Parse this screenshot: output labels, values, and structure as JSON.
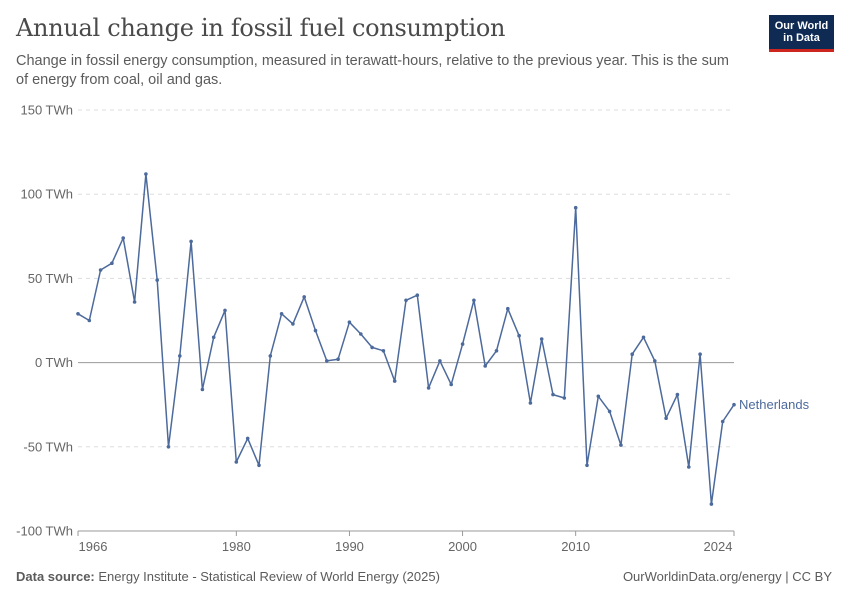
{
  "title": "Annual change in fossil fuel consumption",
  "subtitle": "Change in fossil energy consumption, measured in terawatt-hours, relative to the previous year. This is the sum of energy from coal, oil and gas.",
  "logo": {
    "line1": "Our World",
    "line2": "in Data",
    "bg": "#0f2b54",
    "accent": "#ce261e"
  },
  "footer": {
    "source_label": "Data source:",
    "source_text": "Energy Institute - Statistical Review of World Energy (2025)",
    "right_text": "OurWorldinData.org/energy | CC BY"
  },
  "chart_data": {
    "type": "line",
    "xlabel": "",
    "ylabel": "",
    "ylim": [
      -100,
      150
    ],
    "xlim": [
      1966,
      2024
    ],
    "y_ticks": [
      {
        "value": 150,
        "label": "150 TWh"
      },
      {
        "value": 100,
        "label": "100 TWh"
      },
      {
        "value": 50,
        "label": "50 TWh"
      },
      {
        "value": 0,
        "label": "0 TWh"
      },
      {
        "value": -50,
        "label": "-50 TWh"
      },
      {
        "value": -100,
        "label": "-100 TWh"
      }
    ],
    "x_ticks": [
      1966,
      1980,
      1990,
      2000,
      2010,
      2024
    ],
    "grid": "horizontal dashed",
    "line_color": "#4c6a9c",
    "series": [
      {
        "name": "Netherlands",
        "x": [
          1966,
          1967,
          1968,
          1969,
          1970,
          1971,
          1972,
          1973,
          1974,
          1975,
          1976,
          1977,
          1978,
          1979,
          1980,
          1981,
          1982,
          1983,
          1984,
          1985,
          1986,
          1987,
          1988,
          1989,
          1990,
          1991,
          1992,
          1993,
          1994,
          1995,
          1996,
          1997,
          1998,
          1999,
          2000,
          2001,
          2002,
          2003,
          2004,
          2005,
          2006,
          2007,
          2008,
          2009,
          2010,
          2011,
          2012,
          2013,
          2014,
          2015,
          2016,
          2017,
          2018,
          2019,
          2020,
          2021,
          2022,
          2023,
          2024
        ],
        "y": [
          29,
          25,
          55,
          59,
          74,
          36,
          112,
          49,
          -50,
          4,
          72,
          -16,
          15,
          31,
          -59,
          -45,
          -61,
          4,
          29,
          23,
          39,
          19,
          1,
          2,
          24,
          17,
          9,
          7,
          -11,
          37,
          40,
          -15,
          1,
          -13,
          11,
          37,
          -2,
          7,
          32,
          16,
          -24,
          14,
          -19,
          -21,
          92,
          -61,
          -20,
          -29,
          -49,
          5,
          15,
          1,
          -33,
          -19,
          -62,
          5,
          -84,
          -35,
          -25
        ]
      }
    ]
  }
}
